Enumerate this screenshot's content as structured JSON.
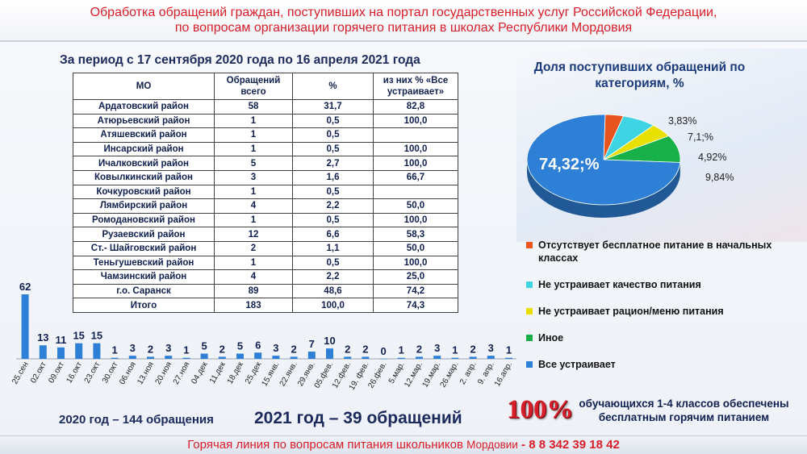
{
  "header": {
    "line1": "Обработка обращений граждан, поступивших на портал государственных услуг Российской Федерации,",
    "line2": "по вопросам организации горячего питания в школах Республики Мордовия"
  },
  "period": "За период с 17 сентября 2020 года по 16 апреля 2021 года",
  "table": {
    "headers": [
      "МО",
      "Обращений всего",
      "%",
      "из них % «Все устраивает»"
    ],
    "rows": [
      {
        "mo": "Ардатовский район",
        "total": "58",
        "pct": "31,7",
        "ok": "82,8"
      },
      {
        "mo": "Атюрьевский район",
        "total": "1",
        "pct": "0,5",
        "ok": "100,0"
      },
      {
        "mo": "Атяшевский район",
        "total": "1",
        "pct": "0,5",
        "ok": ""
      },
      {
        "mo": "Инсарский район",
        "total": "1",
        "pct": "0,5",
        "ok": "100,0"
      },
      {
        "mo": "Ичалковский район",
        "total": "5",
        "pct": "2,7",
        "ok": "100,0"
      },
      {
        "mo": "Ковылкинский район",
        "total": "3",
        "pct": "1,6",
        "ok": "66,7"
      },
      {
        "mo": "Кочкуровский район",
        "total": "1",
        "pct": "0,5",
        "ok": ""
      },
      {
        "mo": "Лямбирский район",
        "total": "4",
        "pct": "2,2",
        "ok": "50,0"
      },
      {
        "mo": "Ромодановский район",
        "total": "1",
        "pct": "0,5",
        "ok": "100,0"
      },
      {
        "mo": "Рузаевский район",
        "total": "12",
        "pct": "6,6",
        "ok": "58,3"
      },
      {
        "mo": "Ст.- Шайговский район",
        "total": "2",
        "pct": "1,1",
        "ok": "50,0"
      },
      {
        "mo": "Теньгушевский район",
        "total": "1",
        "pct": "0,5",
        "ok": "100,0"
      },
      {
        "mo": "Чамзинский район",
        "total": "4",
        "pct": "2,2",
        "ok": "25,0"
      },
      {
        "mo": "г.о. Саранск",
        "total": "89",
        "pct": "48,6",
        "ok": "74,2"
      },
      {
        "mo": "Итого",
        "total": "183",
        "pct": "100,0",
        "ok": "74,3"
      }
    ]
  },
  "pie_title": "Доля поступивших обращений по категориям, %",
  "chart_data": [
    {
      "type": "pie",
      "title": "Доля поступивших обращений по категориям, %",
      "slices": [
        {
          "label": "Все устраивает",
          "value": 74.32,
          "text": "74,32;%",
          "color": "#2e7fd6"
        },
        {
          "label": "Отсутствует бесплатное питание в начальных классах",
          "value": 3.83,
          "text": "3,83%",
          "color": "#e8541e"
        },
        {
          "label": "Не устраивает качество питания",
          "value": 7.1,
          "text": "7,1;%",
          "color": "#3fd4e4"
        },
        {
          "label": "Не устраивает рацион/меню питания",
          "value": 4.92,
          "text": "4,92%",
          "color": "#e8e000"
        },
        {
          "label": "Иное",
          "value": 9.84,
          "text": "9,84%",
          "color": "#18b048"
        }
      ],
      "legend": [
        "Отсутствует бесплатное питание в начальных классах",
        "Не устраивает качество питания",
        "Не устраивает рацион/меню питания",
        "Иное",
        "Все устраивает"
      ]
    },
    {
      "type": "bar",
      "categories": [
        "25.сен",
        "02.окт",
        "09.окт",
        "16.окт",
        "23.окт",
        "30.окт",
        "06.ноя",
        "13.ноя",
        "20.ноя",
        "27.ноя",
        "04.дек",
        "11.дек",
        "18.дек",
        "25.дек",
        "15.янв.",
        "22.янв.",
        "29.янв.",
        "05.фев.",
        "12.фев.",
        "19. фев.",
        "26.фев.",
        "5.мар.",
        "12.мар.",
        "19.мар.",
        "26.мар.",
        "2. апр.",
        "9. апр.",
        "16.апр."
      ],
      "values": [
        62,
        13,
        11,
        15,
        15,
        1,
        3,
        2,
        3,
        1,
        5,
        2,
        5,
        6,
        3,
        2,
        7,
        10,
        2,
        2,
        0,
        1,
        2,
        3,
        1,
        2,
        3,
        1
      ],
      "color": "#2e7fd6"
    }
  ],
  "summary": {
    "y2020": "2020 год – 144 обращения",
    "y2021": "2021 год – 39 обращений",
    "hundred": "100%",
    "note": "обучающихся 1-4 классов обеспечены бесплатным горячим питанием"
  },
  "footer": {
    "text": "Горячая линия по вопросам питания школьников",
    "region": "Мордовии",
    "phone": "- 8 8 342 39 18 42"
  }
}
